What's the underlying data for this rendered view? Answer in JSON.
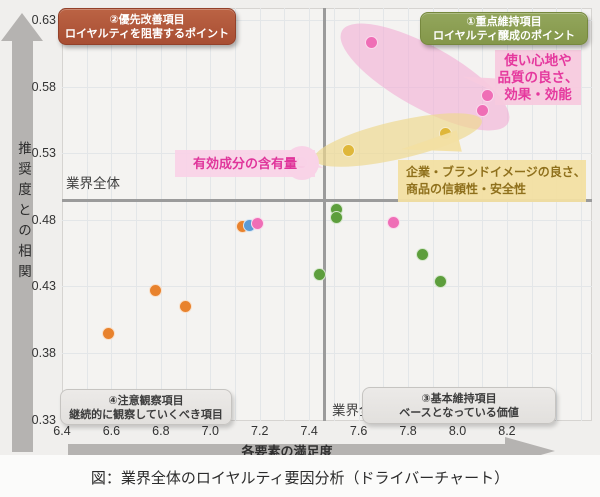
{
  "caption": "図：業界全体のロイヤルティ要因分析（ドライバーチャート）",
  "chart_data": {
    "type": "scatter",
    "xlabel": "各要素の満足度",
    "ylabel": "推奨度との相関",
    "xlim": [
      6.4,
      8.55
    ],
    "ylim": [
      0.33,
      0.63
    ],
    "grid": true,
    "x_ticks": [
      "6.4",
      "6.6",
      "6.8",
      "7.0",
      "7.2",
      "7.4",
      "7.6",
      "7.8",
      "8.0",
      "8.2"
    ],
    "y_ticks": [
      "0.63",
      "0.58",
      "0.53",
      "0.48",
      "0.43",
      "0.38",
      "0.33"
    ],
    "average_lines": {
      "label": "業界全体",
      "x": 7.46,
      "y": 0.495
    },
    "series": [
      {
        "name": "orange",
        "color": "#e8822d",
        "points": [
          [
            6.59,
            0.395
          ],
          [
            6.78,
            0.427
          ],
          [
            6.9,
            0.415
          ],
          [
            7.13,
            0.475
          ]
        ]
      },
      {
        "name": "blue",
        "color": "#5b9bd5",
        "points": [
          [
            7.16,
            0.476
          ]
        ]
      },
      {
        "name": "pink",
        "color": "#ef6eb6",
        "points": [
          [
            7.19,
            0.477
          ],
          [
            7.37,
            0.523
          ],
          [
            7.65,
            0.613
          ],
          [
            7.74,
            0.478
          ],
          [
            8.1,
            0.562
          ],
          [
            8.12,
            0.573
          ]
        ]
      },
      {
        "name": "yellow",
        "color": "#dfb73a",
        "points": [
          [
            7.56,
            0.532
          ],
          [
            7.95,
            0.545
          ]
        ]
      },
      {
        "name": "green",
        "color": "#5d9e3c",
        "points": [
          [
            7.44,
            0.439
          ],
          [
            7.51,
            0.488
          ],
          [
            7.51,
            0.482
          ],
          [
            7.86,
            0.454
          ],
          [
            7.93,
            0.434
          ]
        ]
      }
    ],
    "quadrants": {
      "top_left": {
        "line1": "②優先改善項目",
        "line2": "ロイヤルティを阻害するポイント",
        "bg": "#b05a3c",
        "text_color": "#ffffff"
      },
      "top_right": {
        "line1": "①重点維持項目",
        "line2": "ロイヤルティ醸成のポイント",
        "bg": "#8da054",
        "text_color": "#ffffff"
      },
      "bottom_left": {
        "line1": "④注意観察項目",
        "line2": "継続的に観察していくべき項目",
        "bg": "#e8e6e4",
        "text_color": "#3c3c3c"
      },
      "bottom_right": {
        "line1": "③基本維持項目",
        "line2": "ベースとなっている価値",
        "bg": "#e8e6e4",
        "text_color": "#3c3c3c"
      }
    },
    "annotations": {
      "usability": {
        "lines": [
          "使い心地や",
          "品質の良さ、",
          "効果・効能"
        ],
        "bg": "#f7cade",
        "text_color": "#e5399e"
      },
      "brand": {
        "lines": [
          "企業・ブランドイメージの良さ、",
          "商品の信頼性・安全性"
        ],
        "bg": "#f2dfa2",
        "text_color": "#8f701c"
      },
      "ingredient": {
        "lines": [
          "有効成分の含有量"
        ],
        "bg": "#f8d3e7",
        "text_color": "#e0359b",
        "ring_point": [
          7.37,
          0.523
        ]
      }
    }
  },
  "colors": {
    "plot_bg": "#f4f3f1",
    "page_bg": "#f0efed",
    "grid": "#e3e6e8",
    "average_line": "#9b9b9b",
    "axis_arrow": "#b5b3b1"
  }
}
